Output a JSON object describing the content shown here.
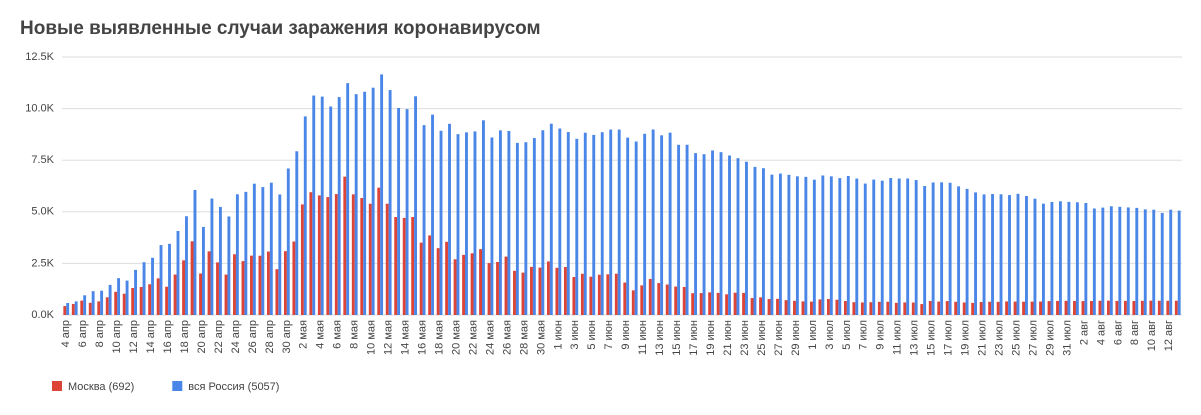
{
  "chart_data": {
    "type": "bar",
    "title": "Новые выявленные случаи заражения коронавирусом",
    "categories": [
      "4 апр",
      null,
      "6 апр",
      null,
      "8 апр",
      null,
      "10 апр",
      null,
      "12 апр",
      null,
      "14 апр",
      null,
      "16 апр",
      null,
      "18 апр",
      null,
      "20 апр",
      null,
      "22 апр",
      null,
      "24 апр",
      null,
      "26 апр",
      null,
      "28 апр",
      null,
      "30 апр",
      null,
      "2 мая",
      null,
      "4 мая",
      null,
      "6 мая",
      null,
      "8 мая",
      null,
      "10 мая",
      null,
      "12 мая",
      null,
      "14 мая",
      null,
      "16 мая",
      null,
      "18 мая",
      null,
      "20 мая",
      null,
      "22 мая",
      null,
      "24 мая",
      null,
      "26 мая",
      null,
      "28 мая",
      null,
      "30 мая",
      null,
      "1 июн",
      null,
      "3 июн",
      null,
      "5 июн",
      null,
      "7 июн",
      null,
      "9 июн",
      null,
      "11 июн",
      null,
      "13 июн",
      null,
      "15 июн",
      null,
      "17 июн",
      null,
      "19 июн",
      null,
      "21 июн",
      null,
      "23 июн",
      null,
      "25 июн",
      null,
      "27 июн",
      null,
      "29 июн",
      null,
      "1 июл",
      null,
      "3 июл",
      null,
      "5 июл",
      null,
      "7 июл",
      null,
      "9 июл",
      null,
      "11 июл",
      null,
      "13 июл",
      null,
      "15 июл",
      null,
      "17 июл",
      null,
      "19 июл",
      null,
      "21 июл",
      null,
      "23 июл",
      null,
      "25 июл",
      null,
      "27 июл",
      null,
      "29 июл",
      null,
      "31 июл",
      null,
      "2 авг",
      null,
      "4 авг",
      null,
      "6 авг",
      null,
      "8 авг",
      null,
      "10 авг",
      null,
      "12 авг",
      null
    ],
    "series": [
      {
        "name": "Москва (692)",
        "color": "#db4437",
        "values": [
          434,
          536,
          697,
          591,
          660,
          857,
          1124,
          1030,
          1306,
          1355,
          1489,
          1774,
          1370,
          1959,
          2649,
          3570,
          2012,
          3083,
          2548,
          1959,
          2942,
          2612,
          2876,
          2871,
          3075,
          2220,
          3093,
          3561,
          5358,
          5948,
          5795,
          5714,
          5858,
          6703,
          5846,
          5667,
          5392,
          6169,
          5392,
          4748,
          4703,
          4748,
          3505,
          3855,
          3238,
          3545,
          2699,
          2913,
          2988,
          3190,
          2516,
          2568,
          2830,
          2140,
          2054,
          2332,
          2297,
          2595,
          2286,
          2325,
          1842,
          1998,
          1855,
          1951,
          1972,
          2001,
          1572,
          1195,
          1436,
          1745,
          1545,
          1477,
          1378,
          1359,
          1057,
          1063,
          1097,
          1070,
          1003,
          1080,
          1070,
          820,
          854,
          774,
          782,
          719,
          687,
          659,
          648,
          754,
          774,
          738,
          678,
          621,
          606,
          620,
          639,
          643,
          589,
          608,
          604,
          529,
          677,
          650,
          674,
          640,
          607,
          586,
          626,
          642,
          637,
          657,
          650,
          643,
          648,
          651,
          675,
          681,
          686,
          679,
          675,
          677,
          691,
          695,
          681,
          684,
          678,
          686,
          695,
          688,
          686,
          692
        ]
      },
      {
        "name": "вся Россия (5057)",
        "color": "#4a86e8",
        "values": [
          582,
          658,
          954,
          1154,
          1175,
          1459,
          1786,
          1667,
          2186,
          2558,
          2774,
          3388,
          3448,
          4070,
          4785,
          6060,
          4268,
          5642,
          5236,
          4774,
          5849,
          5966,
          6361,
          6198,
          6411,
          5841,
          7099,
          7933,
          9623,
          10633,
          10581,
          10102,
          10559,
          11231,
          10699,
          10817,
          11012,
          11656,
          10899,
          10028,
          9974,
          10598,
          9200,
          9709,
          8926,
          9263,
          8764,
          8849,
          8894,
          9434,
          8599,
          8946,
          8915,
          8338,
          8371,
          8572,
          8952,
          9268,
          9035,
          8863,
          8536,
          8831,
          8726,
          8855,
          8984,
          8985,
          8595,
          8404,
          8779,
          8987,
          8706,
          8835,
          8246,
          8248,
          7843,
          7790,
          7972,
          7889,
          7728,
          7600,
          7425,
          7176,
          7113,
          6800,
          6852,
          6791,
          6719,
          6693,
          6556,
          6760,
          6718,
          6632,
          6736,
          6611,
          6368,
          6562,
          6509,
          6635,
          6611,
          6615,
          6537,
          6248,
          6422,
          6428,
          6406,
          6234,
          6109,
          5940,
          5842,
          5862,
          5848,
          5811,
          5871,
          5765,
          5635,
          5395,
          5475,
          5509,
          5482,
          5462,
          5427,
          5159,
          5204,
          5267,
          5241,
          5212,
          5189,
          5118,
          5102,
          4945,
          5102,
          5057
        ]
      }
    ],
    "ylim": [
      0,
      12500
    ],
    "yticks": [
      {
        "value": 0,
        "label": "0.0K"
      },
      {
        "value": 2500,
        "label": "2.5K"
      },
      {
        "value": 5000,
        "label": "5.0K"
      },
      {
        "value": 7500,
        "label": "7.5K"
      },
      {
        "value": 10000,
        "label": "10.0K"
      },
      {
        "value": 12500,
        "label": "12.5K"
      }
    ],
    "grid": true,
    "legend": "bottom-left"
  }
}
